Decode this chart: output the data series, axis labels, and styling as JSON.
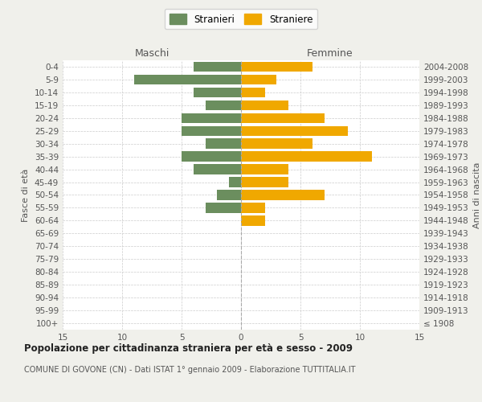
{
  "age_groups": [
    "100+",
    "95-99",
    "90-94",
    "85-89",
    "80-84",
    "75-79",
    "70-74",
    "65-69",
    "60-64",
    "55-59",
    "50-54",
    "45-49",
    "40-44",
    "35-39",
    "30-34",
    "25-29",
    "20-24",
    "15-19",
    "10-14",
    "5-9",
    "0-4"
  ],
  "birth_years": [
    "≤ 1908",
    "1909-1913",
    "1914-1918",
    "1919-1923",
    "1924-1928",
    "1929-1933",
    "1934-1938",
    "1939-1943",
    "1944-1948",
    "1949-1953",
    "1954-1958",
    "1959-1963",
    "1964-1968",
    "1969-1973",
    "1974-1978",
    "1979-1983",
    "1984-1988",
    "1989-1993",
    "1994-1998",
    "1999-2003",
    "2004-2008"
  ],
  "males": [
    0,
    0,
    0,
    0,
    0,
    0,
    0,
    0,
    0,
    3,
    2,
    1,
    4,
    5,
    3,
    5,
    5,
    3,
    4,
    9,
    4
  ],
  "females": [
    0,
    0,
    0,
    0,
    0,
    0,
    0,
    0,
    2,
    2,
    7,
    4,
    4,
    11,
    6,
    9,
    7,
    4,
    2,
    3,
    6
  ],
  "male_color": "#6b8e5e",
  "female_color": "#f0a800",
  "title": "Popolazione per cittadinanza straniera per età e sesso - 2009",
  "subtitle": "COMUNE DI GOVONE (CN) - Dati ISTAT 1° gennaio 2009 - Elaborazione TUTTITALIA.IT",
  "label_maschi": "Maschi",
  "label_femmine": "Femmine",
  "ylabel_left": "Fasce di età",
  "ylabel_right": "Anni di nascita",
  "legend_male": "Stranieri",
  "legend_female": "Straniere",
  "xlim": 15,
  "background_color": "#f0f0eb",
  "bar_background": "#ffffff",
  "grid_color": "#cccccc",
  "spine_color": "#cccccc"
}
